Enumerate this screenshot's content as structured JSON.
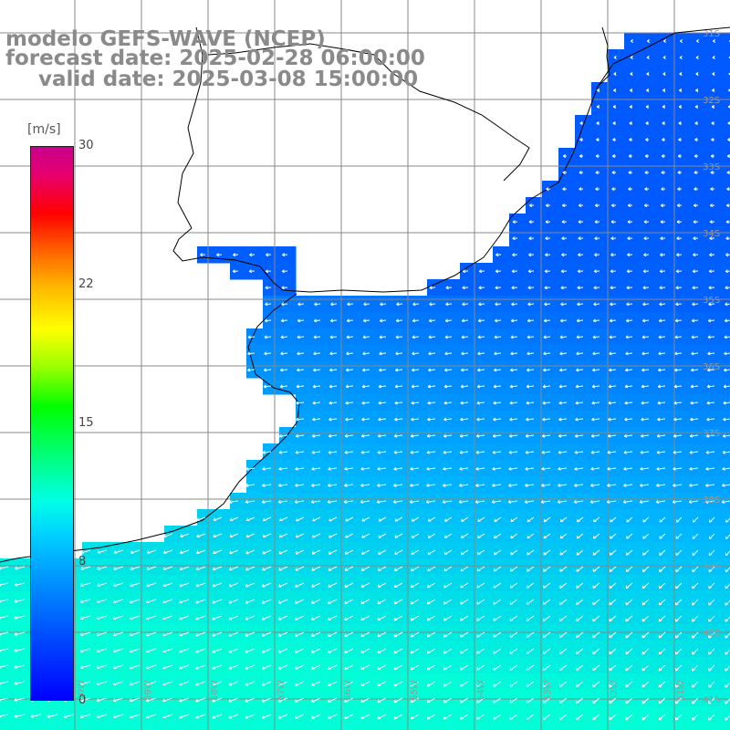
{
  "header": {
    "line1": "modelo GEFS-WAVE (NCEP)",
    "line2": "forecast date: 2025-02-28 06:00:00",
    "line3": "valid date: 2025-03-08 15:00:00"
  },
  "colorbar": {
    "unit": "[m/s]",
    "ticks": [
      "30",
      "22",
      "15",
      "8",
      "0"
    ],
    "tick_values": [
      30,
      22,
      15,
      8,
      0
    ],
    "min": 0,
    "max": 30,
    "colors": [
      "#0000ff",
      "#0096ff",
      "#00ffe6",
      "#00ff00",
      "#ffff00",
      "#ff6400",
      "#ff0000",
      "#c8008c"
    ]
  },
  "map": {
    "lat_labels": [
      "31S",
      "32S",
      "33S",
      "34S",
      "35S",
      "36S",
      "37S",
      "38S",
      "39S",
      "40S",
      "41S"
    ],
    "lon_labels": [
      "60W",
      "59W",
      "58W",
      "57W",
      "56W",
      "55W",
      "54W",
      "53W",
      "52W",
      "51W"
    ],
    "colors": {
      "land": "#ffffff",
      "grid": "#888888",
      "coast": "#000000",
      "arrow": "#ffffff"
    }
  }
}
